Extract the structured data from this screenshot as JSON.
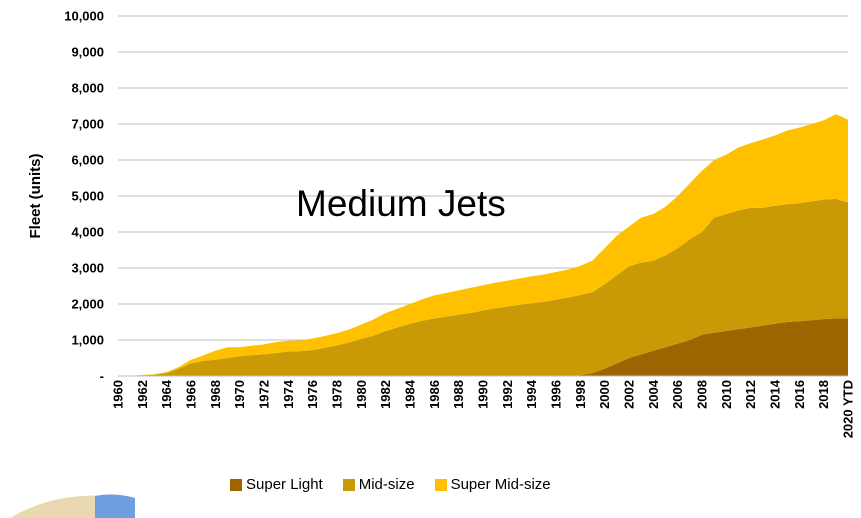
{
  "chart_data": {
    "type": "area",
    "stacked": true,
    "annotation": "Medium Jets",
    "xlabel": "",
    "ylabel": "Fleet (units)",
    "ylim": [
      0,
      10000
    ],
    "yticks": [
      0,
      1000,
      2000,
      3000,
      4000,
      5000,
      6000,
      7000,
      8000,
      9000,
      10000
    ],
    "ytick_labels": [
      "-",
      "1,000",
      "2,000",
      "3,000",
      "4,000",
      "5,000",
      "6,000",
      "7,000",
      "8,000",
      "9,000",
      "10,000"
    ],
    "grid": true,
    "legend_position": "bottom",
    "x": [
      "1960",
      "1961",
      "1962",
      "1963",
      "1964",
      "1965",
      "1966",
      "1967",
      "1968",
      "1969",
      "1970",
      "1971",
      "1972",
      "1973",
      "1974",
      "1975",
      "1976",
      "1977",
      "1978",
      "1979",
      "1980",
      "1981",
      "1982",
      "1983",
      "1984",
      "1985",
      "1986",
      "1987",
      "1988",
      "1989",
      "1990",
      "1991",
      "1992",
      "1993",
      "1994",
      "1995",
      "1996",
      "1997",
      "1998",
      "1999",
      "2000",
      "2001",
      "2002",
      "2003",
      "2004",
      "2005",
      "2006",
      "2007",
      "2008",
      "2009",
      "2010",
      "2011",
      "2012",
      "2013",
      "2014",
      "2015",
      "2016",
      "2017",
      "2018",
      "2019",
      "2020 YTD"
    ],
    "x_tick_labels": [
      "1960",
      "",
      "1962",
      "",
      "1964",
      "",
      "1966",
      "",
      "1968",
      "",
      "1970",
      "",
      "1972",
      "",
      "1974",
      "",
      "1976",
      "",
      "1978",
      "",
      "1980",
      "",
      "1982",
      "",
      "1984",
      "",
      "1986",
      "",
      "1988",
      "",
      "1990",
      "",
      "1992",
      "",
      "1994",
      "",
      "1996",
      "",
      "1998",
      "",
      "2000",
      "",
      "2002",
      "",
      "2004",
      "",
      "2006",
      "",
      "2008",
      "",
      "2010",
      "",
      "2012",
      "",
      "2014",
      "",
      "2016",
      "",
      "2018",
      "",
      "2020 YTD"
    ],
    "series": [
      {
        "name": "Super Light",
        "color": "#9C6500",
        "values": [
          0,
          0,
          0,
          0,
          0,
          0,
          0,
          0,
          0,
          0,
          0,
          0,
          0,
          0,
          0,
          0,
          0,
          0,
          0,
          0,
          0,
          0,
          0,
          0,
          0,
          0,
          0,
          0,
          0,
          0,
          0,
          0,
          0,
          0,
          0,
          0,
          0,
          0,
          20,
          80,
          200,
          350,
          500,
          600,
          700,
          800,
          900,
          1000,
          1150,
          1200,
          1250,
          1300,
          1350,
          1400,
          1450,
          1500,
          1520,
          1550,
          1580,
          1600,
          1600
        ]
      },
      {
        "name": "Mid-size",
        "color": "#C99A06",
        "values": [
          0,
          0,
          20,
          30,
          80,
          200,
          350,
          420,
          450,
          500,
          550,
          580,
          600,
          640,
          680,
          690,
          720,
          780,
          850,
          930,
          1030,
          1120,
          1250,
          1350,
          1450,
          1530,
          1600,
          1650,
          1700,
          1750,
          1820,
          1880,
          1930,
          1980,
          2020,
          2060,
          2120,
          2180,
          2230,
          2250,
          2350,
          2450,
          2550,
          2550,
          2500,
          2550,
          2650,
          2800,
          2850,
          3200,
          3250,
          3300,
          3320,
          3270,
          3280,
          3270,
          3280,
          3300,
          3320,
          3320,
          3220
        ]
      },
      {
        "name": "Super Mid-size",
        "color": "#FFC000",
        "values": [
          0,
          0,
          10,
          20,
          30,
          50,
          100,
          150,
          250,
          300,
          250,
          260,
          280,
          300,
          300,
          300,
          320,
          330,
          340,
          360,
          400,
          450,
          500,
          520,
          550,
          600,
          640,
          660,
          680,
          700,
          700,
          710,
          720,
          730,
          750,
          760,
          770,
          780,
          810,
          880,
          1000,
          1100,
          1100,
          1250,
          1300,
          1350,
          1450,
          1550,
          1700,
          1600,
          1650,
          1750,
          1800,
          1900,
          1950,
          2050,
          2100,
          2150,
          2200,
          2350,
          2300
        ]
      }
    ]
  }
}
